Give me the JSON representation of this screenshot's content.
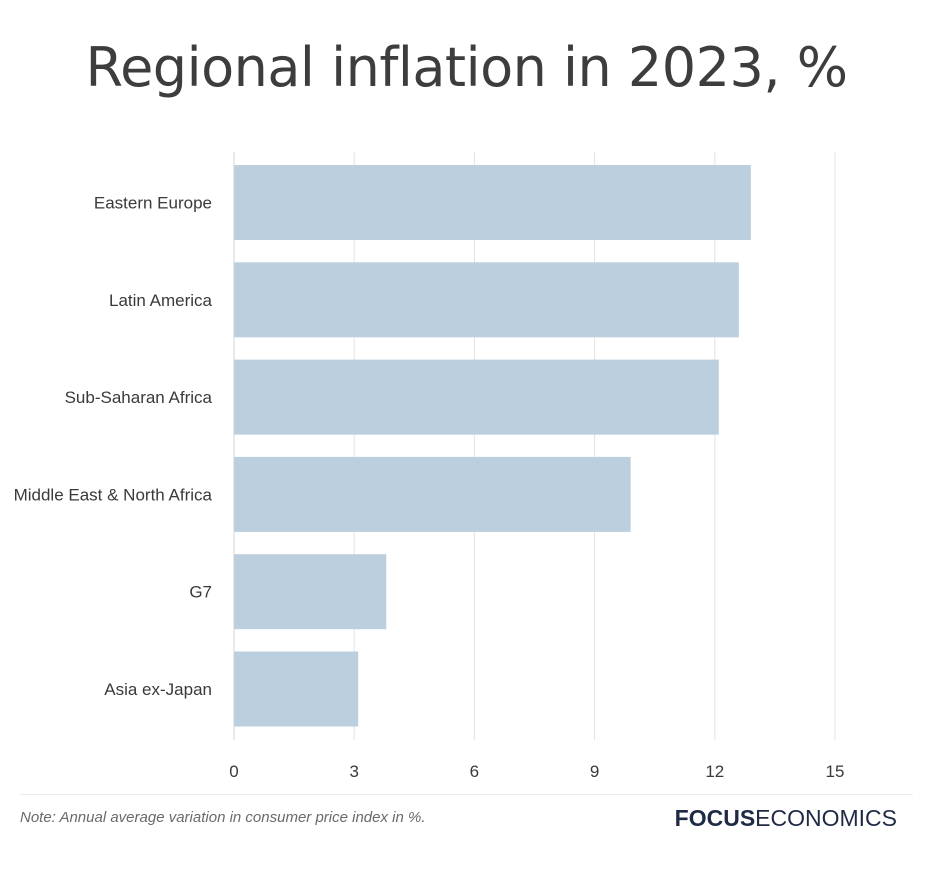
{
  "chart_data": {
    "type": "bar",
    "orientation": "horizontal",
    "title": "Regional inflation in 2023, %",
    "categories": [
      "Eastern Europe",
      "Latin America",
      "Sub-Saharan Africa",
      "Middle East & North Africa",
      "G7",
      "Asia ex-Japan"
    ],
    "values": [
      12.9,
      12.6,
      12.1,
      9.9,
      3.8,
      3.1
    ],
    "xlim": [
      0,
      15
    ],
    "xticks": [
      "0",
      "3",
      "6",
      "9",
      "12",
      "15"
    ],
    "grid": true,
    "bar_color": "#bccfde",
    "grid_color": "#e3e3e3"
  },
  "note": "Note: Annual average variation in consumer price index in %.",
  "logo": {
    "bold": "FOCUS",
    "light": "ECONOMICS"
  }
}
